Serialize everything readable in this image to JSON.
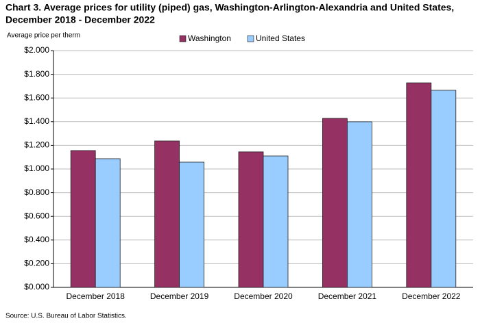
{
  "chart_data": {
    "type": "bar",
    "title": [
      "Chart 3. Average prices for utility (piped) gas, Washington-Arlington-Alexandria and United States,",
      "December 2018 - December 2022"
    ],
    "y_label": "Average price per therm",
    "source": "Source: U.S. Bureau of Labor Statistics.",
    "categories": [
      "December 2018",
      "December 2019",
      "December 2020",
      "December 2021",
      "December 2022"
    ],
    "series": [
      {
        "name": "Washington",
        "color": "#953163",
        "values": [
          1.156,
          1.237,
          1.145,
          1.428,
          1.728
        ]
      },
      {
        "name": "United States",
        "color": "#99ccff",
        "values": [
          1.087,
          1.058,
          1.11,
          1.399,
          1.665
        ]
      }
    ],
    "ylim": [
      0,
      2
    ],
    "yticks": [
      {
        "value": 0,
        "label": "$0.000"
      },
      {
        "value": 0.2,
        "label": "$0.200"
      },
      {
        "value": 0.4,
        "label": "$0.400"
      },
      {
        "value": 0.6,
        "label": "$0.600"
      },
      {
        "value": 0.8,
        "label": "$0.800"
      },
      {
        "value": 1.0,
        "label": "$1.000"
      },
      {
        "value": 1.2,
        "label": "$1.200"
      },
      {
        "value": 1.4,
        "label": "$1.400"
      },
      {
        "value": 1.6,
        "label": "$1.600"
      },
      {
        "value": 1.8,
        "label": "$1.800"
      },
      {
        "value": 2.0,
        "label": "$2.000"
      }
    ],
    "grid": true,
    "legend": "top"
  }
}
